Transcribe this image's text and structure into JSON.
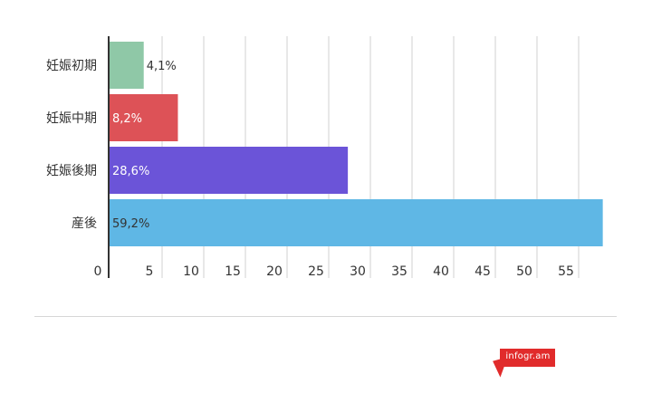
{
  "chart_data": {
    "type": "bar",
    "orientation": "horizontal",
    "categories": [
      "妊娠初期",
      "妊娠中期",
      "妊娠後期",
      "産後"
    ],
    "values": [
      4.1,
      8.2,
      28.6,
      59.2
    ],
    "value_labels": [
      "4,1%",
      "8,2%",
      "28,6%",
      "59,2%"
    ],
    "colors": [
      "#8fc8a7",
      "#dd5257",
      "#6b54d8",
      "#5fb7e5"
    ],
    "value_label_colors": [
      "#333333",
      "#ffffff",
      "#ffffff",
      "#333333"
    ],
    "x_ticks": [
      "0",
      "5",
      "10",
      "15",
      "20",
      "25",
      "30",
      "35",
      "40",
      "45",
      "50",
      "55"
    ],
    "x_tick_values": [
      0,
      5,
      10,
      15,
      20,
      25,
      30,
      35,
      40,
      45,
      50,
      55
    ],
    "xlim": [
      0,
      60
    ],
    "grid": true,
    "title": "",
    "xlabel": "",
    "ylabel": ""
  },
  "branding": {
    "label": "infogr.am",
    "color": "#e12b2b"
  }
}
